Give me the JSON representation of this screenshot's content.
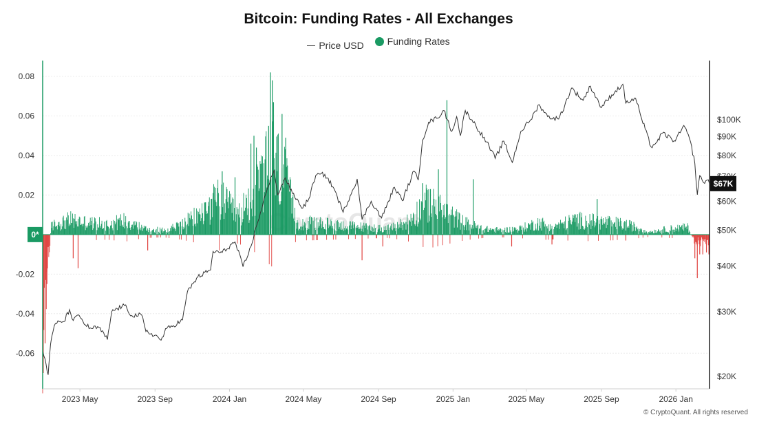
{
  "header": {
    "title": "Bitcoin: Funding Rates - All Exchanges"
  },
  "legend": {
    "price_label": "Price USD",
    "funding_label": "Funding Rates",
    "price_color": "#333333",
    "funding_color": "#1a9a63",
    "negative_color": "#e0413e"
  },
  "footer": {
    "copyright": "© CryptoQuant. All rights reserved"
  },
  "watermark": "CryptoQuant",
  "chart_data": {
    "type": "bar",
    "title": "Bitcoin: Funding Rates - All Exchanges",
    "x_range": [
      "2023-03-01",
      "2026-02-25"
    ],
    "x_ticks": [
      {
        "date": "2023-05-01",
        "label": "2023 May"
      },
      {
        "date": "2023-09-01",
        "label": "2023 Sep"
      },
      {
        "date": "2024-01-01",
        "label": "2024 Jan"
      },
      {
        "date": "2024-05-01",
        "label": "2024 May"
      },
      {
        "date": "2024-09-01",
        "label": "2024 Sep"
      },
      {
        "date": "2025-01-01",
        "label": "2025 Jan"
      },
      {
        "date": "2025-05-01",
        "label": "2025 May"
      },
      {
        "date": "2025-09-01",
        "label": "2025 Sep"
      },
      {
        "date": "2026-01-01",
        "label": "2026 Jan"
      }
    ],
    "y_left": {
      "range": [
        -0.078,
        0.088
      ],
      "ticks": [
        {
          "value": 0.08,
          "label": "0.08"
        },
        {
          "value": 0.06,
          "label": "0.06"
        },
        {
          "value": 0.04,
          "label": "0.04"
        },
        {
          "value": 0.02,
          "label": "0.02"
        },
        {
          "value": -0.02,
          "label": "-0.02"
        },
        {
          "value": -0.04,
          "label": "-0.04"
        },
        {
          "value": -0.06,
          "label": "-0.06"
        }
      ],
      "zero_badge": "0*"
    },
    "y_right": {
      "scale": "log",
      "range": [
        18500,
        145000
      ],
      "ticks": [
        {
          "value": 100000,
          "label": "$100K"
        },
        {
          "value": 90000,
          "label": "$90K"
        },
        {
          "value": 80000,
          "label": "$80K"
        },
        {
          "value": 70000,
          "label": "$70K"
        },
        {
          "value": 60000,
          "label": "$60K"
        },
        {
          "value": 50000,
          "label": "$50K"
        },
        {
          "value": 40000,
          "label": "$40K"
        },
        {
          "value": 30000,
          "label": "$30K"
        },
        {
          "value": 20000,
          "label": "$20K"
        }
      ],
      "current_badge": "$67K",
      "current_value": 67000
    },
    "grid": true,
    "series": [
      {
        "name": "Price USD",
        "type": "line",
        "axis": "right",
        "color": "#333333",
        "points": [
          [
            "2023-03-01",
            23500
          ],
          [
            "2023-03-05",
            22300
          ],
          [
            "2023-03-10",
            20200
          ],
          [
            "2023-03-14",
            24500
          ],
          [
            "2023-03-20",
            27500
          ],
          [
            "2023-03-28",
            28200
          ],
          [
            "2023-04-05",
            28200
          ],
          [
            "2023-04-14",
            30400
          ],
          [
            "2023-04-20",
            28400
          ],
          [
            "2023-04-30",
            29300
          ],
          [
            "2023-05-10",
            27600
          ],
          [
            "2023-05-20",
            27000
          ],
          [
            "2023-06-01",
            27200
          ],
          [
            "2023-06-15",
            25200
          ],
          [
            "2023-06-22",
            30000
          ],
          [
            "2023-07-01",
            30600
          ],
          [
            "2023-07-13",
            31200
          ],
          [
            "2023-07-25",
            29300
          ],
          [
            "2023-08-10",
            29400
          ],
          [
            "2023-08-17",
            26500
          ],
          [
            "2023-09-01",
            25900
          ],
          [
            "2023-09-11",
            25100
          ],
          [
            "2023-09-20",
            27000
          ],
          [
            "2023-10-01",
            27500
          ],
          [
            "2023-10-16",
            28500
          ],
          [
            "2023-10-24",
            34000
          ],
          [
            "2023-11-10",
            37300
          ],
          [
            "2023-12-01",
            39000
          ],
          [
            "2023-12-05",
            43800
          ],
          [
            "2023-12-20",
            43500
          ],
          [
            "2024-01-10",
            46500
          ],
          [
            "2024-01-23",
            39800
          ],
          [
            "2024-02-01",
            43000
          ],
          [
            "2024-02-15",
            51800
          ],
          [
            "2024-02-28",
            62000
          ],
          [
            "2024-03-05",
            66000
          ],
          [
            "2024-03-14",
            73000
          ],
          [
            "2024-03-20",
            62500
          ],
          [
            "2024-04-01",
            69500
          ],
          [
            "2024-04-13",
            63000
          ],
          [
            "2024-04-30",
            57500
          ],
          [
            "2024-05-10",
            61000
          ],
          [
            "2024-05-21",
            70500
          ],
          [
            "2024-06-05",
            71000
          ],
          [
            "2024-06-20",
            65000
          ],
          [
            "2024-07-05",
            56000
          ],
          [
            "2024-07-28",
            69000
          ],
          [
            "2024-08-05",
            53500
          ],
          [
            "2024-08-20",
            60000
          ],
          [
            "2024-09-06",
            54000
          ],
          [
            "2024-09-27",
            65500
          ],
          [
            "2024-10-10",
            60200
          ],
          [
            "2024-10-29",
            72500
          ],
          [
            "2024-11-05",
            68500
          ],
          [
            "2024-11-12",
            88000
          ],
          [
            "2024-11-22",
            98500
          ],
          [
            "2024-12-05",
            101000
          ],
          [
            "2024-12-17",
            106000
          ],
          [
            "2024-12-30",
            93000
          ],
          [
            "2025-01-07",
            102000
          ],
          [
            "2025-01-13",
            90500
          ],
          [
            "2025-01-21",
            106000
          ],
          [
            "2025-02-01",
            100000
          ],
          [
            "2025-02-25",
            87000
          ],
          [
            "2025-03-11",
            78500
          ],
          [
            "2025-03-25",
            87500
          ],
          [
            "2025-04-08",
            76500
          ],
          [
            "2025-04-22",
            93000
          ],
          [
            "2025-05-08",
            100000
          ],
          [
            "2025-05-22",
            110000
          ],
          [
            "2025-06-05",
            102000
          ],
          [
            "2025-06-23",
            100500
          ],
          [
            "2025-07-03",
            109500
          ],
          [
            "2025-07-14",
            122000
          ],
          [
            "2025-08-02",
            113000
          ],
          [
            "2025-08-14",
            123500
          ],
          [
            "2025-09-01",
            108000
          ],
          [
            "2025-09-18",
            117000
          ],
          [
            "2025-10-06",
            125000
          ],
          [
            "2025-10-11",
            111000
          ],
          [
            "2025-10-27",
            114500
          ],
          [
            "2025-11-04",
            103000
          ],
          [
            "2025-11-21",
            84500
          ],
          [
            "2025-12-01",
            87000
          ],
          [
            "2025-12-10",
            92000
          ],
          [
            "2025-12-31",
            87500
          ],
          [
            "2026-01-14",
            96500
          ],
          [
            "2026-01-25",
            87000
          ],
          [
            "2026-02-01",
            76000
          ],
          [
            "2026-02-05",
            62500
          ],
          [
            "2026-02-09",
            70500
          ],
          [
            "2026-02-15",
            67500
          ],
          [
            "2026-02-21",
            68500
          ],
          [
            "2026-02-25",
            67000
          ]
        ]
      },
      {
        "name": "Funding Rates",
        "type": "bar",
        "axis": "left",
        "color": "#1a9a63",
        "negative_color": "#e0413e",
        "envelope": [
          [
            "2023-03-01",
            -0.07
          ],
          [
            "2023-03-15",
            0.006
          ],
          [
            "2023-04-15",
            0.01
          ],
          [
            "2023-05-15",
            0.008
          ],
          [
            "2023-06-15",
            0.007
          ],
          [
            "2023-07-15",
            0.01
          ],
          [
            "2023-08-15",
            0.004
          ],
          [
            "2023-09-15",
            0.003
          ],
          [
            "2023-10-15",
            0.007
          ],
          [
            "2023-11-15",
            0.014
          ],
          [
            "2023-12-15",
            0.025
          ],
          [
            "2024-01-15",
            0.013
          ],
          [
            "2024-02-15",
            0.03
          ],
          [
            "2024-03-10",
            0.052
          ],
          [
            "2024-03-30",
            0.04
          ],
          [
            "2024-04-20",
            0.008
          ],
          [
            "2024-05-15",
            0.008
          ],
          [
            "2024-06-15",
            0.007
          ],
          [
            "2024-07-15",
            0.006
          ],
          [
            "2024-08-15",
            0.005
          ],
          [
            "2024-09-15",
            0.004
          ],
          [
            "2024-10-15",
            0.008
          ],
          [
            "2024-11-20",
            0.022
          ],
          [
            "2024-12-20",
            0.015
          ],
          [
            "2025-01-20",
            0.008
          ],
          [
            "2025-02-20",
            0.004
          ],
          [
            "2025-03-20",
            0.003
          ],
          [
            "2025-04-20",
            0.004
          ],
          [
            "2025-05-20",
            0.008
          ],
          [
            "2025-06-20",
            0.006
          ],
          [
            "2025-07-20",
            0.01
          ],
          [
            "2025-08-20",
            0.009
          ],
          [
            "2025-09-20",
            0.008
          ],
          [
            "2025-10-20",
            0.006
          ],
          [
            "2025-11-20",
            0.002
          ],
          [
            "2025-12-20",
            0.004
          ],
          [
            "2026-01-20",
            0.005
          ],
          [
            "2026-02-01",
            -0.005
          ],
          [
            "2026-02-25",
            -0.006
          ]
        ],
        "spikes": [
          [
            "2023-03-02",
            -0.07
          ],
          [
            "2023-03-05",
            -0.055
          ],
          [
            "2023-03-08",
            -0.025
          ],
          [
            "2023-04-20",
            -0.012
          ],
          [
            "2023-04-28",
            -0.017
          ],
          [
            "2023-08-20",
            -0.008
          ],
          [
            "2023-12-02",
            0.018
          ],
          [
            "2023-12-20",
            0.032
          ],
          [
            "2024-01-10",
            0.029
          ],
          [
            "2024-02-05",
            0.046
          ],
          [
            "2024-02-10",
            0.05
          ],
          [
            "2024-02-14",
            0.044
          ],
          [
            "2024-03-05",
            0.055
          ],
          [
            "2024-03-08",
            0.082
          ],
          [
            "2024-03-11",
            0.078
          ],
          [
            "2024-03-13",
            0.067
          ],
          [
            "2024-03-27",
            0.061
          ],
          [
            "2024-04-02",
            0.049
          ],
          [
            "2024-08-05",
            -0.013
          ],
          [
            "2024-09-08",
            -0.006
          ],
          [
            "2024-11-12",
            0.026
          ],
          [
            "2024-11-25",
            0.023
          ],
          [
            "2024-12-08",
            0.033
          ],
          [
            "2024-12-22",
            0.068
          ],
          [
            "2025-02-03",
            0.028
          ],
          [
            "2025-04-07",
            -0.006
          ],
          [
            "2025-06-12",
            -0.005
          ],
          [
            "2025-08-25",
            0.018
          ],
          [
            "2025-10-11",
            -0.003
          ],
          [
            "2026-02-01",
            -0.012
          ],
          [
            "2026-02-05",
            -0.022
          ],
          [
            "2026-02-09",
            -0.01
          ],
          [
            "2026-02-14",
            -0.01
          ],
          [
            "2026-02-20",
            -0.009
          ],
          [
            "2026-02-24",
            -0.01
          ]
        ]
      }
    ]
  }
}
